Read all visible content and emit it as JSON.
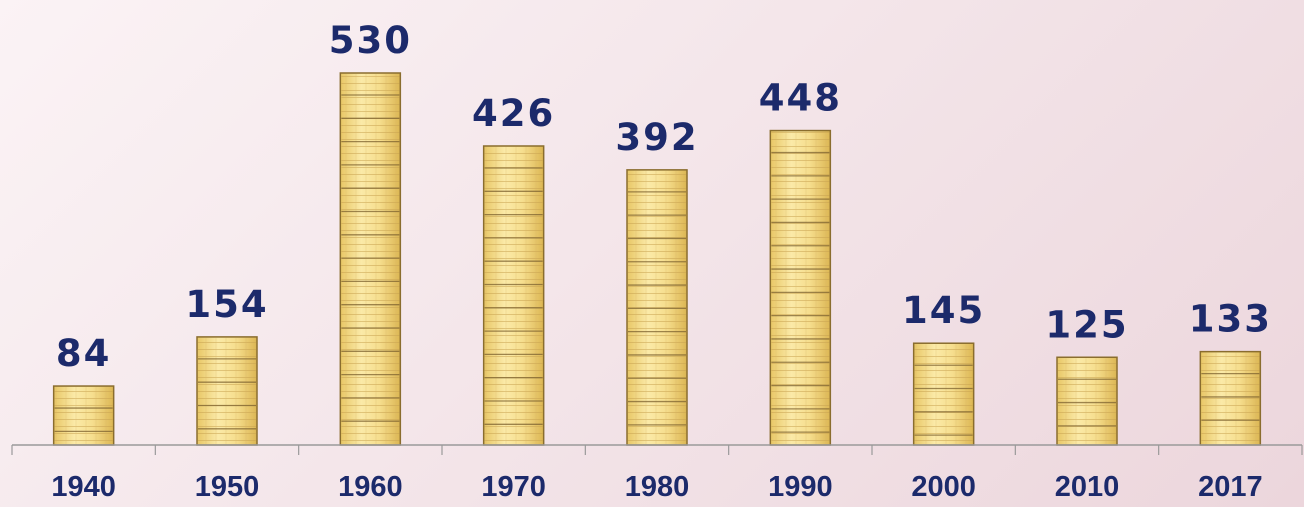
{
  "chart_data": {
    "type": "bar",
    "categories": [
      "1940",
      "1950",
      "1960",
      "1970",
      "1980",
      "1990",
      "2000",
      "2010",
      "2017"
    ],
    "values": [
      84,
      154,
      530,
      426,
      392,
      448,
      145,
      125,
      133
    ],
    "title": "",
    "xlabel": "",
    "ylabel": "",
    "ylim": [
      0,
      530
    ],
    "grid": false,
    "legend": "none",
    "bar_color": "#f4d98a",
    "bar_edge_color": "#8a6d2e",
    "label_color": "#1c2a6b",
    "axis_color": "#9a9a9a"
  }
}
